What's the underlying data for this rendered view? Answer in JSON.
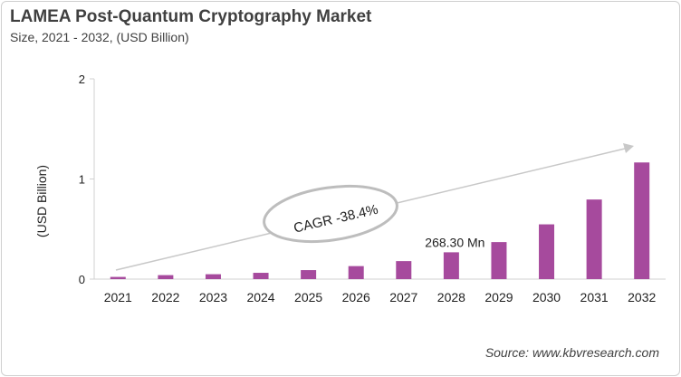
{
  "chart_data": {
    "type": "bar",
    "title": "LAMEA Post-Quantum Cryptography Market",
    "subtitle": "Size, 2021 - 2032, (USD Billion)",
    "xlabel": "",
    "ylabel": "(USD Billion)",
    "ylim": [
      0,
      2
    ],
    "yticks": [
      0,
      1,
      2
    ],
    "categories": [
      "2021",
      "2022",
      "2023",
      "2024",
      "2025",
      "2026",
      "2027",
      "2028",
      "2029",
      "2030",
      "2031",
      "2032"
    ],
    "values": [
      0.022,
      0.04,
      0.049,
      0.063,
      0.09,
      0.13,
      0.18,
      0.268,
      0.37,
      0.547,
      0.795,
      1.165
    ],
    "bar_color": "#a64a9d",
    "grid": false,
    "annotations": {
      "data_label": {
        "category": "2028",
        "text": "268.30 Mn"
      },
      "cagr": "CAGR -38.4%"
    },
    "source": "Source: www.kbvresearch.com"
  }
}
